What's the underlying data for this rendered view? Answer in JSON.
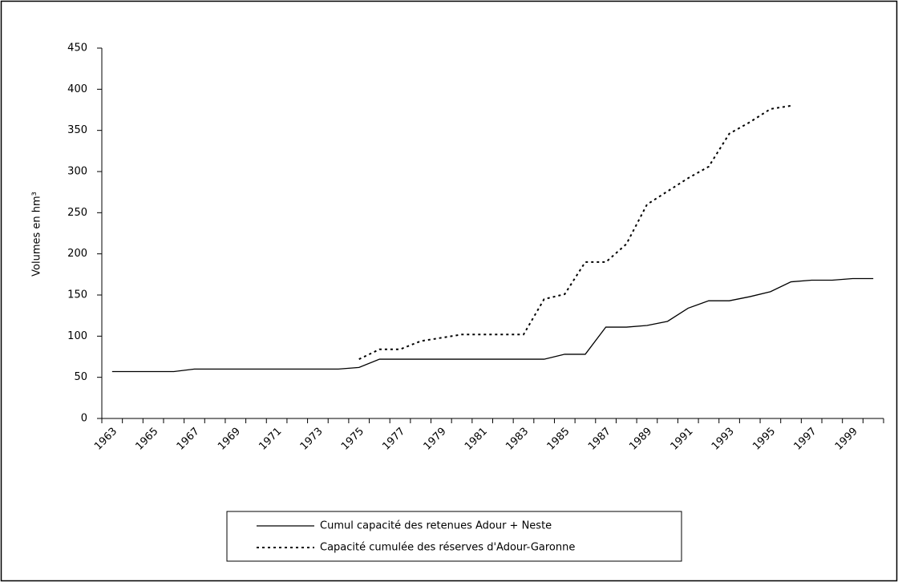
{
  "chart_data": {
    "type": "line",
    "y_label": "Volumes en hm³",
    "categories": [
      "1963",
      null,
      "1965",
      null,
      "1967",
      null,
      "1969",
      null,
      "1971",
      null,
      "1973",
      null,
      "1975",
      null,
      "1977",
      null,
      "1979",
      null,
      "1981",
      null,
      "1983",
      null,
      "1985",
      null,
      "1987",
      null,
      "1989",
      null,
      "1991",
      null,
      "1993",
      null,
      "1995",
      null,
      "1997",
      null,
      "1999",
      null
    ],
    "series": [
      {
        "name": "Cumul capacité des retenues Adour + Neste",
        "color": "#000000",
        "dash": "solid",
        "values": [
          57,
          57,
          57,
          57,
          60,
          60,
          60,
          60,
          60,
          60,
          60,
          60,
          62,
          72,
          72,
          72,
          72,
          72,
          72,
          72,
          72,
          72,
          78,
          78,
          111,
          111,
          113,
          118,
          134,
          143,
          143,
          148,
          154,
          166,
          168,
          168,
          170,
          170
        ]
      },
      {
        "name": "Capacité cumulée des réserves d'Adour-Garonne",
        "color": "#000000",
        "dash": "dotted",
        "values": [
          null,
          null,
          null,
          null,
          null,
          null,
          null,
          null,
          null,
          null,
          null,
          null,
          72,
          84,
          84,
          94,
          98,
          102,
          102,
          102,
          102,
          145,
          151,
          190,
          190,
          212,
          260,
          276,
          292,
          306,
          346,
          360,
          376,
          380,
          null,
          null,
          null,
          null
        ]
      }
    ],
    "ylim": [
      0,
      450
    ],
    "yticks": [
      0,
      50,
      100,
      150,
      200,
      250,
      300,
      350,
      400,
      450
    ]
  }
}
